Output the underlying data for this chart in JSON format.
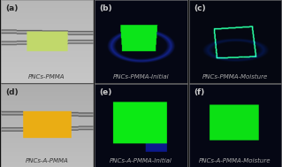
{
  "panels": [
    {
      "label": "(a)",
      "caption": "PNCs-PMMA",
      "row": 0,
      "col": 0,
      "type": "daylight_top"
    },
    {
      "label": "(b)",
      "caption": "PNCs-PMMA-Initial",
      "row": 0,
      "col": 1,
      "type": "uv_bright"
    },
    {
      "label": "(c)",
      "caption": "PNCs-PMMA-Moisture",
      "row": 0,
      "col": 2,
      "type": "uv_dim"
    },
    {
      "label": "(d)",
      "caption": "PNCs-A-PMMA",
      "row": 1,
      "col": 0,
      "type": "daylight_bottom"
    },
    {
      "label": "(e)",
      "caption": "PNCs-A-PMMA-Initial",
      "row": 1,
      "col": 1,
      "type": "uv_bright2"
    },
    {
      "label": "(f)",
      "caption": "PNCs-A-PMMA-Moisture",
      "row": 1,
      "col": 2,
      "type": "uv_bright3"
    }
  ],
  "fig_width": 3.19,
  "fig_height": 1.89,
  "dpi": 100
}
